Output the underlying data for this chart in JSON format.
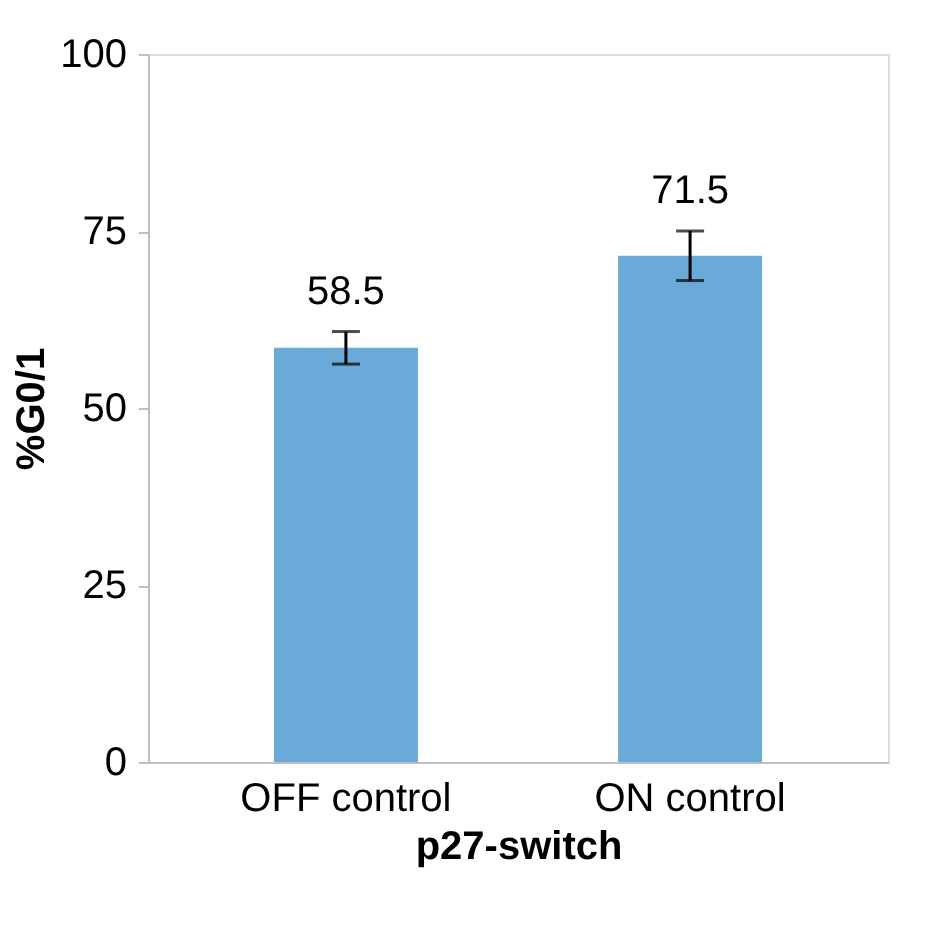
{
  "chart_data": {
    "type": "bar",
    "xlabel": "p27-switch",
    "ylabel": "%G0/1",
    "categories": [
      "OFF control",
      "ON control"
    ],
    "values": [
      58.5,
      71.5
    ],
    "color": "#6aaad9",
    "errors": [
      2.3,
      3.5
    ],
    "data_labels": true,
    "ylim": [
      0,
      100
    ],
    "yticks": [
      0,
      25,
      50,
      75,
      100
    ],
    "grid": false
  }
}
